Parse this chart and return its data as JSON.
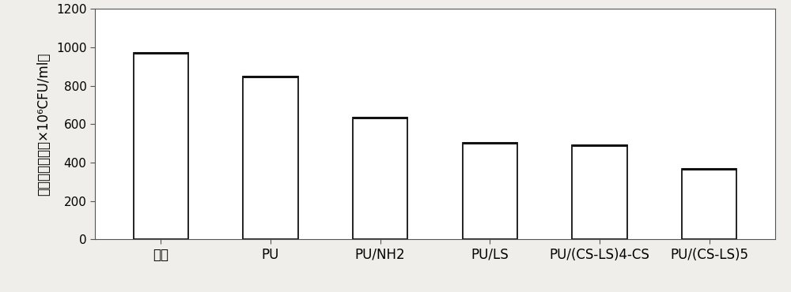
{
  "categories": [
    "空白",
    "PU",
    "PU/NH2",
    "PU/LS",
    "PU/(CS-LS)4-CS",
    "PU/(CS-LS)5"
  ],
  "values": [
    970,
    848,
    635,
    502,
    492,
    368
  ],
  "bar_color": "#ffffff",
  "bar_edge_color": "#111111",
  "bar_width": 0.5,
  "ylabel": "绿脓杆菌浓度（×10⁶CFU/ml）",
  "ylim": [
    0,
    1200
  ],
  "yticks": [
    0,
    200,
    400,
    600,
    800,
    1000,
    1200
  ],
  "background_color": "#ffffff",
  "figure_bg": "#f0eeea",
  "ylabel_fontsize": 12,
  "tick_fontsize": 11,
  "xlabel_fontsize": 12,
  "spine_color": "#555555",
  "spine_linewidth": 0.8
}
